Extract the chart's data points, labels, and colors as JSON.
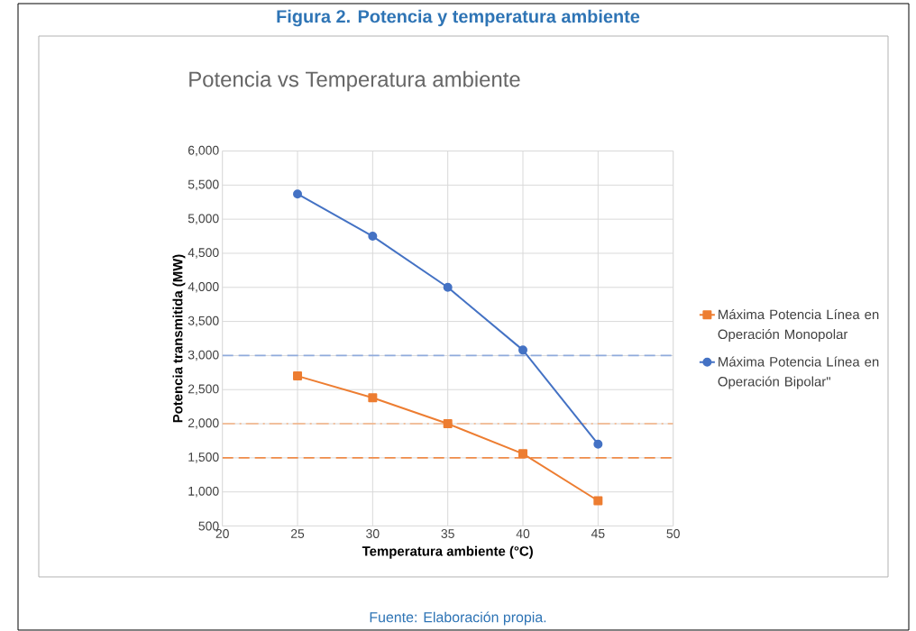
{
  "chart_data": {
    "type": "line",
    "title": "Figura 2. Potencia y temperatura ambiente",
    "subtitle": "Potencia vs Temperatura ambiente",
    "xlabel": "Temperatura ambiente (°C)",
    "ylabel": "Potencia transmitida (MW)",
    "x": [
      25,
      30,
      35,
      40,
      45
    ],
    "series": [
      {
        "name": "Máxima Potencia Línea en Operación Monopolar",
        "color": "#ed7d31",
        "marker": "square",
        "values": [
          2700,
          2380,
          2000,
          1560,
          870
        ]
      },
      {
        "name": "Máxima Potencia Línea en Operación Bipolar\"",
        "color": "#4472c4",
        "marker": "circle",
        "values": [
          5370,
          4750,
          4000,
          3080,
          1700
        ]
      }
    ],
    "xlim": [
      20,
      50
    ],
    "xticks": [
      20,
      25,
      30,
      35,
      40,
      45,
      50
    ],
    "ylim": [
      500,
      6000
    ],
    "yticks": [
      500,
      {
        "value": 1000,
        "label": "1,000"
      },
      {
        "value": 1500,
        "label": "1,500"
      },
      {
        "value": 2000,
        "label": "2,000"
      },
      {
        "value": 2500,
        "label": "2,500"
      },
      {
        "value": 3000,
        "label": "3,000"
      },
      {
        "value": 3500,
        "label": "3,500"
      },
      {
        "value": 4000,
        "label": "4,000"
      },
      {
        "value": 4500,
        "label": "4,500"
      },
      {
        "value": 5000,
        "label": "5,000"
      },
      {
        "value": 5500,
        "label": "5,500"
      },
      {
        "value": 6000,
        "label": "6,000"
      }
    ],
    "ref_lines": [
      {
        "axis": "y",
        "value": 3000,
        "color": "#8faadc",
        "line_style": "dashed"
      },
      {
        "axis": "y",
        "value": 2000,
        "color": "#f4b183",
        "line_style": "dashdot"
      },
      {
        "axis": "y",
        "value": 1500,
        "color": "#f08c4a",
        "line_style": "dashed"
      }
    ],
    "grid": true,
    "legend": "right",
    "annotations": [
      "Fuente: Elaboración propia."
    ]
  }
}
